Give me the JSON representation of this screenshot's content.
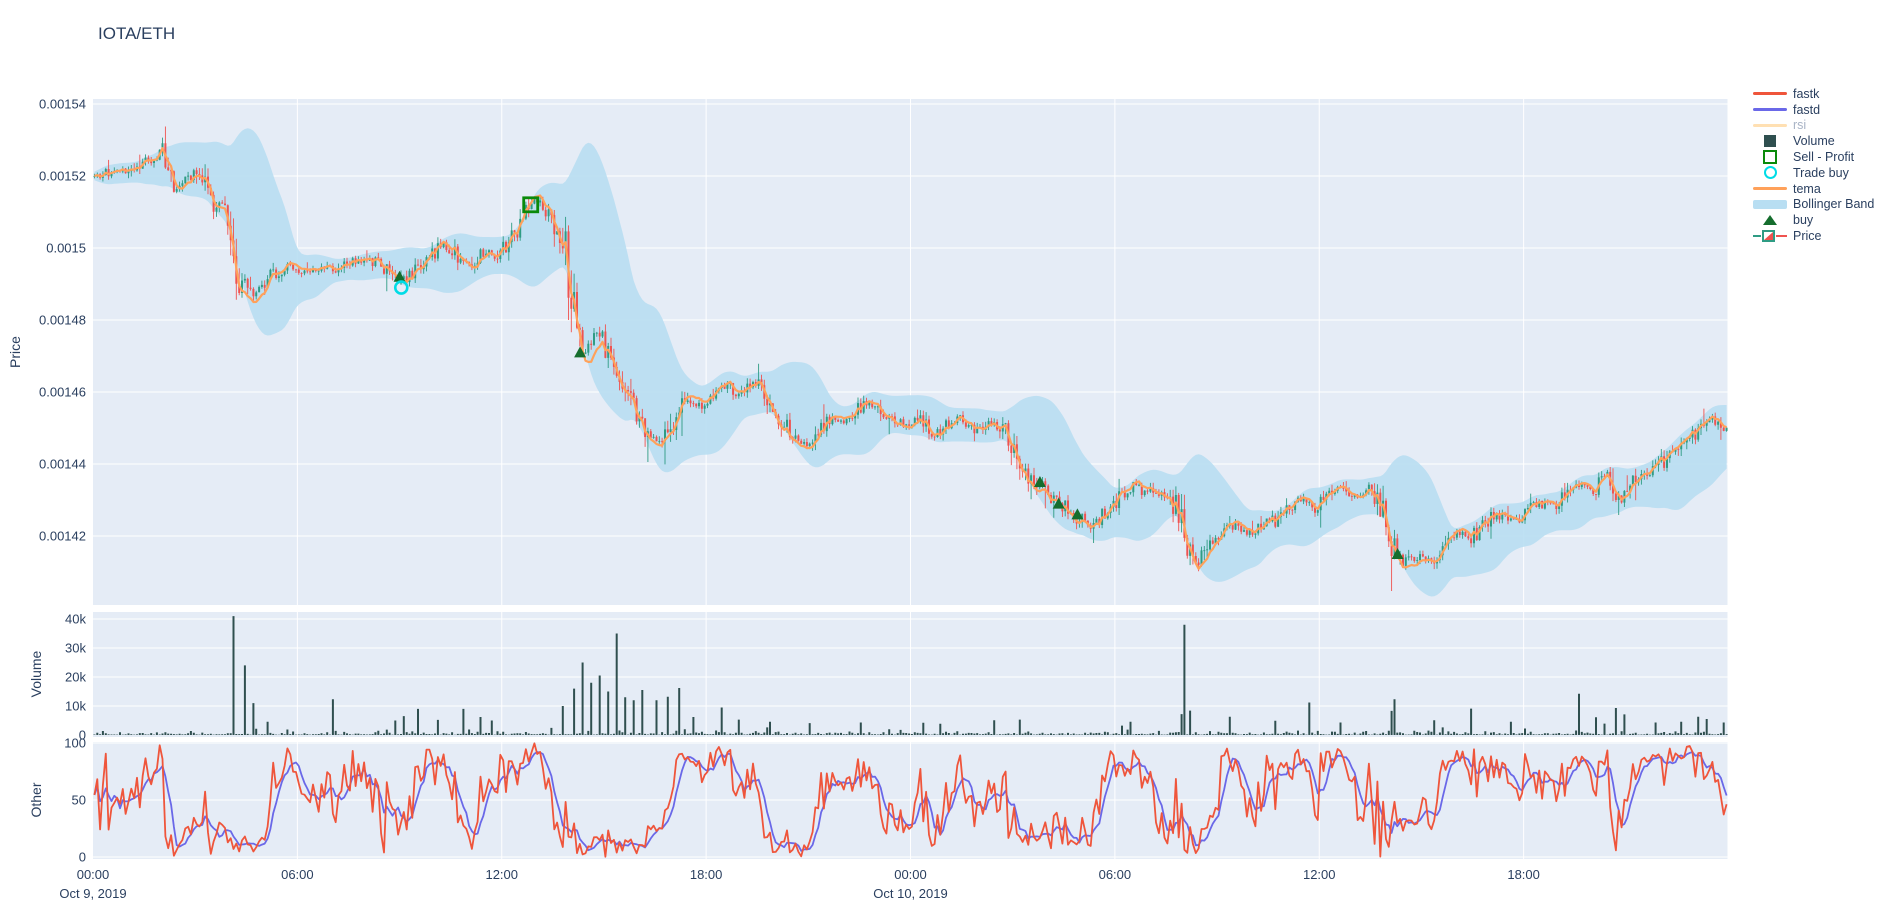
{
  "title": "IOTA/ETH",
  "colors": {
    "text": "#2a3f5f",
    "muted_text": "#a9b4c6",
    "panel_bg": "#e5ecf6",
    "grid": "#ffffff",
    "fastk": "#ef553b",
    "fastd": "#6a68e8",
    "rsi": "#ffe0b3",
    "volume": "#2f4f4f",
    "sell_profit": "#0a8a0a",
    "trade_buy": "#00dce6",
    "tema": "#ffa15a",
    "bollinger": "#b8def2",
    "buy": "#156d2d",
    "candle_up": "#2f9c84",
    "candle_down": "#ef5350"
  },
  "legend": {
    "items": [
      {
        "label": "fastk",
        "glyph": "line",
        "color": "#ef553b",
        "muted": false
      },
      {
        "label": "fastd",
        "glyph": "line",
        "color": "#6a68e8",
        "muted": false
      },
      {
        "label": "rsi",
        "glyph": "line",
        "color": "#ffe0b3",
        "muted": true
      },
      {
        "label": "Volume",
        "glyph": "square",
        "color": "#2f4f4f",
        "muted": false
      },
      {
        "label": "Sell - Profit",
        "glyph": "square-open",
        "color": "#0a8a0a",
        "muted": false
      },
      {
        "label": "Trade buy",
        "glyph": "circle-open",
        "color": "#00dce6",
        "muted": false
      },
      {
        "label": "tema",
        "glyph": "line",
        "color": "#ffa15a",
        "muted": false
      },
      {
        "label": "Bollinger Band",
        "glyph": "band",
        "color": "#b8def2",
        "muted": false
      },
      {
        "label": "buy",
        "glyph": "triangle",
        "color": "#156d2d",
        "muted": false
      },
      {
        "label": "Price",
        "glyph": "candle",
        "color": "#2f9c84",
        "muted": false
      }
    ]
  },
  "axes": {
    "price": {
      "title": "Price",
      "tick_labels": [
        "0.00154",
        "0.00152",
        "0.0015",
        "0.00148",
        "0.00146",
        "0.00144",
        "0.00142"
      ],
      "tick_values": [
        0.00154,
        0.00152,
        0.0015,
        0.00148,
        0.00146,
        0.00144,
        0.00142
      ]
    },
    "volume": {
      "title": "Volume",
      "tick_labels": [
        "0",
        "10k",
        "20k",
        "30k",
        "40k"
      ],
      "tick_values": [
        0,
        10000,
        20000,
        30000,
        40000
      ]
    },
    "other": {
      "title": "Other",
      "tick_labels": [
        "0",
        "50",
        "100"
      ],
      "tick_values": [
        0,
        50,
        100
      ]
    },
    "x": {
      "tick_labels": [
        "00:00",
        "06:00",
        "12:00",
        "18:00",
        "00:00",
        "06:00",
        "12:00",
        "18:00"
      ],
      "tick_hours": [
        0,
        6,
        12,
        18,
        24,
        30,
        36,
        42
      ],
      "grid_hours": [
        6,
        12,
        18,
        24,
        30,
        36,
        42,
        48
      ],
      "date_labels": [
        {
          "label": "Oct 9, 2019",
          "hour": 0
        },
        {
          "label": "Oct 10, 2019",
          "hour": 24
        }
      ]
    }
  },
  "chart_data": {
    "type": "candlestick",
    "pair": "IOTA/ETH",
    "x_range_hours": [
      0,
      48
    ],
    "timeframe_minutes": 5,
    "price_ylim": [
      0.001401,
      0.0015414
    ],
    "volume_ylim": [
      0,
      42400
    ],
    "other_ylim": [
      0,
      100
    ],
    "seed": 11,
    "indicators": {
      "bollinger_window": 24,
      "bollinger_mult": 2.0,
      "tema_period": 10,
      "stoch_k_window": 13,
      "stoch_d_window": 5
    },
    "price_anchors": [
      [
        0,
        0.00152
      ],
      [
        0.5,
        0.001521
      ],
      [
        1,
        0.001521
      ],
      [
        1.3,
        0.001523
      ],
      [
        1.7,
        0.001524
      ],
      [
        2,
        0.001527
      ],
      [
        2.3,
        0.001517
      ],
      [
        2.6,
        0.001519
      ],
      [
        3,
        0.001521
      ],
      [
        3.3,
        0.001519
      ],
      [
        3.5,
        0.001508
      ],
      [
        3.7,
        0.001515
      ],
      [
        3.9,
        0.001512
      ],
      [
        4.15,
        0.001494
      ],
      [
        4.4,
        0.001491
      ],
      [
        4.7,
        0.001486
      ],
      [
        5,
        0.00149
      ],
      [
        5.4,
        0.001494
      ],
      [
        5.8,
        0.001495
      ],
      [
        6.2,
        0.001493
      ],
      [
        6.6,
        0.001495
      ],
      [
        7,
        0.001494
      ],
      [
        7.4,
        0.001496
      ],
      [
        7.8,
        0.001497
      ],
      [
        8.2,
        0.001496
      ],
      [
        8.6,
        0.001494
      ],
      [
        9,
        0.001491
      ],
      [
        9.3,
        0.001493
      ],
      [
        9.7,
        0.001496
      ],
      [
        10,
        0.001499
      ],
      [
        10.3,
        0.001501
      ],
      [
        10.6,
        0.001498
      ],
      [
        10.9,
        0.001495
      ],
      [
        11.2,
        0.001497
      ],
      [
        11.5,
        0.001499
      ],
      [
        11.8,
        0.001498
      ],
      [
        12,
        0.0015
      ],
      [
        12.3,
        0.001503
      ],
      [
        12.6,
        0.001508
      ],
      [
        12.85,
        0.001512
      ],
      [
        13.1,
        0.001513
      ],
      [
        13.35,
        0.001509
      ],
      [
        13.6,
        0.001506
      ],
      [
        13.8,
        0.001499
      ],
      [
        14,
        0.00149
      ],
      [
        14.2,
        0.001475
      ],
      [
        14.45,
        0.001471
      ],
      [
        14.7,
        0.001477
      ],
      [
        14.9,
        0.001474
      ],
      [
        15.15,
        0.001469
      ],
      [
        15.4,
        0.001466
      ],
      [
        15.7,
        0.00146
      ],
      [
        16,
        0.001452
      ],
      [
        16.3,
        0.001448
      ],
      [
        16.6,
        0.001445
      ],
      [
        16.9,
        0.00145
      ],
      [
        17.2,
        0.001455
      ],
      [
        17.5,
        0.001458
      ],
      [
        17.8,
        0.001456
      ],
      [
        18.1,
        0.001459
      ],
      [
        18.4,
        0.001462
      ],
      [
        18.7,
        0.001461
      ],
      [
        19,
        0.001459
      ],
      [
        19.3,
        0.001463
      ],
      [
        19.6,
        0.001461
      ],
      [
        19.9,
        0.001456
      ],
      [
        20.2,
        0.001452
      ],
      [
        20.5,
        0.001448
      ],
      [
        20.8,
        0.001445
      ],
      [
        21.1,
        0.001447
      ],
      [
        21.4,
        0.001451
      ],
      [
        21.7,
        0.001453
      ],
      [
        22,
        0.001452
      ],
      [
        22.4,
        0.001455
      ],
      [
        22.8,
        0.001457
      ],
      [
        23.1,
        0.001455
      ],
      [
        23.4,
        0.001452
      ],
      [
        23.8,
        0.001451
      ],
      [
        24.2,
        0.001453
      ],
      [
        24.6,
        0.001448
      ],
      [
        25,
        0.001451
      ],
      [
        25.4,
        0.001453
      ],
      [
        25.8,
        0.001449
      ],
      [
        26.1,
        0.001451
      ],
      [
        26.4,
        0.001452
      ],
      [
        26.8,
        0.001449
      ],
      [
        27.1,
        0.001441
      ],
      [
        27.4,
        0.001437
      ],
      [
        27.8,
        0.001434
      ],
      [
        28.1,
        0.00143
      ],
      [
        28.5,
        0.001428
      ],
      [
        28.9,
        0.001425
      ],
      [
        29.2,
        0.001423
      ],
      [
        29.6,
        0.001426
      ],
      [
        30,
        0.00143
      ],
      [
        30.5,
        0.001434
      ],
      [
        31,
        0.001432
      ],
      [
        31.5,
        0.00143
      ],
      [
        31.9,
        0.001426
      ],
      [
        32.1,
        0.001414
      ],
      [
        32.4,
        0.001412
      ],
      [
        32.7,
        0.001418
      ],
      [
        33,
        0.001421
      ],
      [
        33.4,
        0.001423
      ],
      [
        33.8,
        0.001421
      ],
      [
        34.2,
        0.001422
      ],
      [
        34.6,
        0.001424
      ],
      [
        35,
        0.001428
      ],
      [
        35.4,
        0.00143
      ],
      [
        35.8,
        0.001427
      ],
      [
        36.2,
        0.001431
      ],
      [
        36.6,
        0.001433
      ],
      [
        37,
        0.001431
      ],
      [
        37.4,
        0.001433
      ],
      [
        37.8,
        0.001429
      ],
      [
        38.1,
        0.001416
      ],
      [
        38.4,
        0.001413
      ],
      [
        38.8,
        0.001414
      ],
      [
        39.2,
        0.001413
      ],
      [
        39.6,
        0.001416
      ],
      [
        40,
        0.001421
      ],
      [
        40.4,
        0.001419
      ],
      [
        40.8,
        0.001424
      ],
      [
        41.2,
        0.001426
      ],
      [
        41.6,
        0.001424
      ],
      [
        42,
        0.001427
      ],
      [
        42.4,
        0.001429
      ],
      [
        42.8,
        0.001428
      ],
      [
        43.2,
        0.001431
      ],
      [
        43.6,
        0.001434
      ],
      [
        44,
        0.001432
      ],
      [
        44.4,
        0.001437
      ],
      [
        44.8,
        0.00143
      ],
      [
        45.2,
        0.001435
      ],
      [
        45.6,
        0.001437
      ],
      [
        46,
        0.00144
      ],
      [
        46.4,
        0.001444
      ],
      [
        46.8,
        0.001447
      ],
      [
        47.2,
        0.00145
      ],
      [
        47.5,
        0.001453
      ],
      [
        47.8,
        0.001449
      ],
      [
        48,
        0.001451
      ]
    ],
    "volume_spikes": [
      [
        4.1,
        41000
      ],
      [
        4.45,
        24000
      ],
      [
        4.7,
        11000
      ],
      [
        5.05,
        4600
      ],
      [
        7.0,
        12300
      ],
      [
        8.8,
        5000
      ],
      [
        9.1,
        6500
      ],
      [
        9.5,
        9000
      ],
      [
        10.1,
        5200
      ],
      [
        10.8,
        9000
      ],
      [
        11.3,
        6200
      ],
      [
        11.65,
        5000
      ],
      [
        13.75,
        10000
      ],
      [
        14.05,
        16000
      ],
      [
        14.35,
        25000
      ],
      [
        14.6,
        18000
      ],
      [
        14.85,
        20500
      ],
      [
        15.1,
        15000
      ],
      [
        15.3,
        35000
      ],
      [
        15.55,
        13000
      ],
      [
        15.8,
        12000
      ],
      [
        16.1,
        15500
      ],
      [
        16.5,
        12000
      ],
      [
        16.8,
        13200
      ],
      [
        17.2,
        16200
      ],
      [
        17.6,
        6200
      ],
      [
        18.4,
        9500
      ],
      [
        18.9,
        5300
      ],
      [
        19.8,
        4600
      ],
      [
        21.0,
        4100
      ],
      [
        22.5,
        4300
      ],
      [
        24.3,
        4200
      ],
      [
        24.85,
        3900
      ],
      [
        26.4,
        5100
      ],
      [
        27.2,
        5300
      ],
      [
        30.4,
        4600
      ],
      [
        31.9,
        7200
      ],
      [
        32.0,
        38000
      ],
      [
        32.2,
        8400
      ],
      [
        33.3,
        6300
      ],
      [
        34.7,
        4900
      ],
      [
        35.7,
        11200
      ],
      [
        36.6,
        4300
      ],
      [
        38.05,
        8300
      ],
      [
        38.2,
        12300
      ],
      [
        39.3,
        5100
      ],
      [
        40.4,
        9100
      ],
      [
        41.6,
        4600
      ],
      [
        43.6,
        14200
      ],
      [
        44.1,
        6100
      ],
      [
        44.65,
        9300
      ],
      [
        44.9,
        7100
      ],
      [
        45.8,
        4300
      ],
      [
        46.6,
        4600
      ],
      [
        47.05,
        6300
      ],
      [
        47.3,
        5500
      ],
      [
        47.8,
        4300
      ]
    ],
    "markers": {
      "buy": [
        [
          9.0,
          0.001492
        ],
        [
          14.3,
          0.001471
        ],
        [
          27.8,
          0.001435
        ],
        [
          28.35,
          0.001429
        ],
        [
          28.9,
          0.001426
        ],
        [
          38.3,
          0.001415
        ]
      ],
      "trade_buy": [
        [
          9.05,
          0.001489
        ]
      ],
      "sell_profit": [
        [
          12.85,
          0.001512
        ]
      ]
    }
  }
}
